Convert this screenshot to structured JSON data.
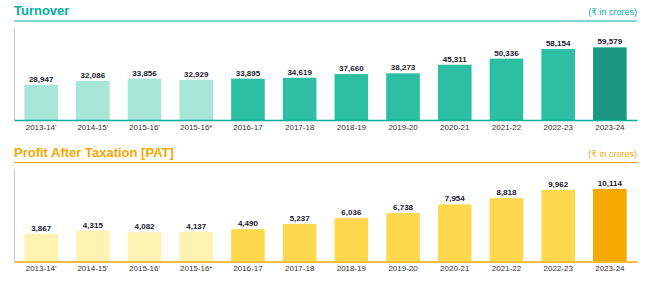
{
  "chart_data": [
    {
      "type": "bar",
      "title": "Turnover",
      "subtitle": "(₹ in crores)",
      "categories": [
        "2013-14'",
        "2014-15'",
        "2015-16'",
        "2015-16*",
        "2016-17",
        "2017-18",
        "2018-19",
        "2019-20",
        "2020-21",
        "2021-22",
        "2022-23",
        "2023-24"
      ],
      "values": [
        28947,
        32086,
        33856,
        32929,
        33895,
        34619,
        37660,
        38273,
        45311,
        50336,
        58154,
        59579
      ],
      "value_labels": [
        "28,947",
        "32,086",
        "33,856",
        "32,929",
        "33,895",
        "34,619",
        "37,660",
        "38,273",
        "45,311",
        "50,336",
        "58,154",
        "59,579"
      ],
      "colors": [
        "#a8e6d8",
        "#a8e6d8",
        "#a8e6d8",
        "#a8e6d8",
        "#2dbfa3",
        "#2dbfa3",
        "#2dbfa3",
        "#2dbfa3",
        "#2dbfa3",
        "#2dbfa3",
        "#2dbfa3",
        "#1a9980"
      ],
      "color": "#00b09b",
      "ylim": [
        0,
        76261.12
      ],
      "data_labels": true,
      "tick_labels": "x",
      "grid": false
    },
    {
      "type": "bar",
      "title": "Profit After Taxation [PAT]",
      "subtitle": "(₹ in crores)",
      "categories": [
        "2013-14'",
        "2014-15'",
        "2015-16'",
        "2015-16*",
        "2016-17",
        "2017-18",
        "2018-19",
        "2019-20",
        "2020-21",
        "2021-22",
        "2022-23",
        "2023-24"
      ],
      "values": [
        3867,
        4315,
        4082,
        4137,
        4490,
        5237,
        6036,
        6738,
        7954,
        8818,
        9962,
        10114
      ],
      "value_labels": [
        "3,867",
        "4,315",
        "4,082",
        "4,137",
        "4,490",
        "5,237",
        "6,036",
        "6,738",
        "7,954",
        "8,818",
        "9,962",
        "10,114"
      ],
      "colors": [
        "#fef3b0",
        "#fef3b0",
        "#fef3b0",
        "#fef3b0",
        "#ffd84d",
        "#ffd84d",
        "#ffd84d",
        "#ffd84d",
        "#ffd84d",
        "#ffd84d",
        "#ffd84d",
        "#f5a800"
      ],
      "color": "#f5a800",
      "ylim": [
        0,
        12945.92
      ],
      "data_labels": true,
      "tick_labels": "x",
      "grid": false
    }
  ]
}
